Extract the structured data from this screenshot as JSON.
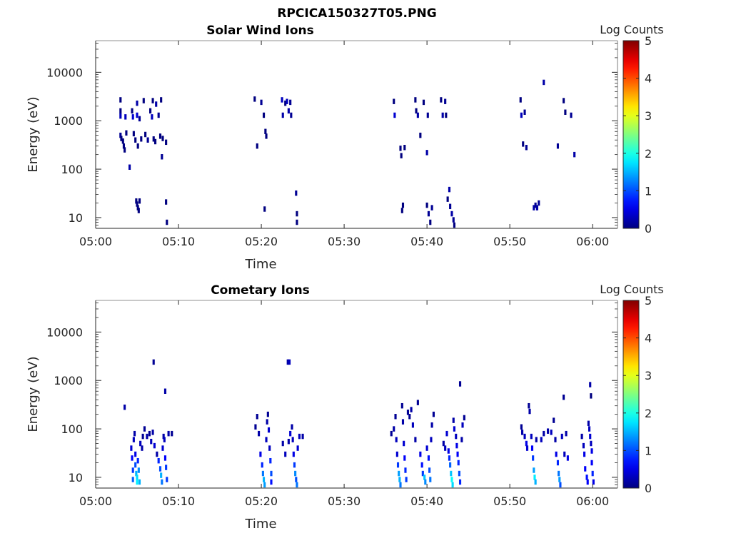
{
  "figure_title": "RPCICA150327T05.PNG",
  "chart_data": [
    {
      "type": "heatmap",
      "title": "Solar Wind Ions",
      "xlabel": "Time",
      "ylabel": "Energy (eV)",
      "y_scale": "log",
      "ylim": [
        6,
        45000
      ],
      "xlim": [
        "05:00",
        "06:03"
      ],
      "x_ticks": [
        "05:00",
        "05:10",
        "05:20",
        "05:30",
        "05:40",
        "05:50",
        "06:00"
      ],
      "y_ticks": [
        {
          "value": 10,
          "label": "10"
        },
        {
          "value": 100,
          "label": "100"
        },
        {
          "value": 1000,
          "label": "1000"
        },
        {
          "value": 10000,
          "label": "10000"
        }
      ],
      "colorbar": {
        "label": "Log Counts",
        "range": [
          0,
          5
        ],
        "ticks": [
          "0",
          "1",
          "2",
          "3",
          "4",
          "5"
        ],
        "colormap": "jet"
      },
      "grid": false,
      "cells": [
        [
          3.0,
          2700,
          0
        ],
        [
          3.0,
          1600,
          0
        ],
        [
          3.0,
          1250,
          0.3
        ],
        [
          3.0,
          500,
          0.1
        ],
        [
          3.1,
          430,
          0
        ],
        [
          3.3,
          380,
          0
        ],
        [
          3.4,
          300,
          0
        ],
        [
          3.5,
          250,
          0
        ],
        [
          3.6,
          1200,
          0.3
        ],
        [
          3.7,
          560,
          0
        ],
        [
          4.1,
          110,
          0.2
        ],
        [
          4.4,
          1600,
          0
        ],
        [
          4.5,
          1200,
          0.4
        ],
        [
          4.6,
          540,
          0
        ],
        [
          4.8,
          400,
          0
        ],
        [
          5.0,
          2300,
          0.2
        ],
        [
          5.0,
          1300,
          0.4
        ],
        [
          5.1,
          300,
          0
        ],
        [
          5.3,
          1100,
          0.1
        ],
        [
          5.5,
          420,
          0
        ],
        [
          5.8,
          2600,
          0
        ],
        [
          6.0,
          520,
          0
        ],
        [
          6.3,
          400,
          0.1
        ],
        [
          6.6,
          1600,
          0
        ],
        [
          6.8,
          1200,
          0.3
        ],
        [
          6.9,
          2600,
          0
        ],
        [
          7.0,
          420,
          0
        ],
        [
          7.2,
          370,
          0
        ],
        [
          7.3,
          2200,
          0.2
        ],
        [
          7.6,
          1300,
          0.1
        ],
        [
          7.8,
          480,
          0
        ],
        [
          7.9,
          2700,
          0
        ],
        [
          8.0,
          180,
          0.1
        ],
        [
          8.1,
          430,
          0
        ],
        [
          8.5,
          360,
          0
        ],
        [
          4.9,
          22,
          0
        ],
        [
          5.0,
          19,
          0
        ],
        [
          5.1,
          16,
          0
        ],
        [
          5.2,
          14,
          0
        ],
        [
          5.3,
          22,
          0
        ],
        [
          8.5,
          21,
          0
        ],
        [
          8.6,
          8,
          0
        ],
        [
          19.2,
          2800,
          0
        ],
        [
          19.5,
          300,
          0
        ],
        [
          20.0,
          2400,
          0.1
        ],
        [
          20.3,
          1300,
          0
        ],
        [
          20.5,
          600,
          0
        ],
        [
          20.6,
          480,
          0
        ],
        [
          20.4,
          15,
          0
        ],
        [
          22.5,
          2700,
          0.3
        ],
        [
          22.6,
          1300,
          0.2
        ],
        [
          22.9,
          2300,
          0
        ],
        [
          23.1,
          2500,
          0.3
        ],
        [
          23.3,
          1600,
          0.2
        ],
        [
          23.6,
          1300,
          0.1
        ],
        [
          23.5,
          2400,
          0.1
        ],
        [
          24.2,
          32,
          0.1
        ],
        [
          24.3,
          12,
          0
        ],
        [
          24.3,
          8,
          0
        ],
        [
          36.0,
          2500,
          0
        ],
        [
          36.1,
          1300,
          0.4
        ],
        [
          36.8,
          270,
          0
        ],
        [
          36.9,
          190,
          0
        ],
        [
          37.3,
          280,
          0
        ],
        [
          37.0,
          14,
          0
        ],
        [
          37.1,
          18,
          0
        ],
        [
          38.6,
          2700,
          0
        ],
        [
          38.7,
          1600,
          0
        ],
        [
          38.9,
          1300,
          0.2
        ],
        [
          39.2,
          500,
          0
        ],
        [
          39.6,
          2400,
          0
        ],
        [
          40.0,
          220,
          0.2
        ],
        [
          40.1,
          1300,
          0.1
        ],
        [
          40.0,
          18,
          0
        ],
        [
          40.2,
          12,
          0.1
        ],
        [
          40.4,
          8,
          0
        ],
        [
          40.6,
          16,
          0.1
        ],
        [
          41.7,
          2700,
          0
        ],
        [
          41.9,
          1300,
          0.2
        ],
        [
          42.2,
          2500,
          0.1
        ],
        [
          42.3,
          1300,
          0
        ],
        [
          42.5,
          24,
          0
        ],
        [
          42.7,
          38,
          0.2
        ],
        [
          42.8,
          17,
          0.1
        ],
        [
          43.0,
          12,
          0.2
        ],
        [
          43.2,
          9,
          0.1
        ],
        [
          43.3,
          7,
          0
        ],
        [
          51.3,
          2700,
          0
        ],
        [
          51.4,
          1300,
          0.3
        ],
        [
          51.6,
          330,
          0
        ],
        [
          51.8,
          1500,
          0.1
        ],
        [
          52.0,
          280,
          0.1
        ],
        [
          52.9,
          16,
          0.2
        ],
        [
          53.1,
          18,
          0.1
        ],
        [
          53.3,
          16,
          0.2
        ],
        [
          53.5,
          20,
          0.1
        ],
        [
          54.1,
          6200,
          0.2
        ],
        [
          55.8,
          300,
          0.1
        ],
        [
          56.5,
          2600,
          0
        ],
        [
          56.7,
          1500,
          0
        ],
        [
          57.4,
          1300,
          0.1
        ],
        [
          57.8,
          200,
          0.2
        ]
      ]
    },
    {
      "type": "heatmap",
      "title": "Cometary Ions",
      "xlabel": "Time",
      "ylabel": "Energy (eV)",
      "y_scale": "log",
      "ylim": [
        6,
        45000
      ],
      "xlim": [
        "05:00",
        "06:03"
      ],
      "x_ticks": [
        "05:00",
        "05:10",
        "05:20",
        "05:30",
        "05:40",
        "05:50",
        "06:00"
      ],
      "y_ticks": [
        {
          "value": 10,
          "label": "10"
        },
        {
          "value": 100,
          "label": "100"
        },
        {
          "value": 1000,
          "label": "1000"
        },
        {
          "value": 10000,
          "label": "10000"
        }
      ],
      "colorbar": {
        "label": "Log Counts",
        "range": [
          0,
          5
        ],
        "ticks": [
          "0",
          "1",
          "2",
          "3",
          "4",
          "5"
        ],
        "colormap": "jet"
      },
      "grid": false,
      "cells": [
        [
          3.5,
          280,
          0.2
        ],
        [
          7.0,
          2400,
          0.1
        ],
        [
          8.4,
          600,
          0.2
        ],
        [
          23.2,
          2400,
          0.2
        ],
        [
          23.4,
          2400,
          0.3
        ],
        [
          44.0,
          850,
          0.1
        ],
        [
          56.5,
          450,
          0.1
        ],
        [
          59.7,
          820,
          0.2
        ],
        [
          59.8,
          480,
          0
        ],
        [
          4.3,
          40,
          0.4
        ],
        [
          4.4,
          25,
          0.6
        ],
        [
          4.5,
          14,
          0.9
        ],
        [
          4.5,
          9,
          1.1
        ],
        [
          4.6,
          60,
          0.3
        ],
        [
          4.7,
          80,
          0.2
        ],
        [
          4.8,
          30,
          0.5
        ],
        [
          4.8,
          18,
          1.0
        ],
        [
          4.9,
          12,
          1.5
        ],
        [
          5.0,
          10,
          1.7
        ],
        [
          5.0,
          8,
          1.8
        ],
        [
          5.1,
          22,
          0.8
        ],
        [
          5.2,
          14,
          1.3
        ],
        [
          5.3,
          8,
          1.5
        ],
        [
          5.4,
          50,
          0.3
        ],
        [
          5.6,
          40,
          0.2
        ],
        [
          5.7,
          70,
          0.1
        ],
        [
          5.9,
          100,
          0.1
        ],
        [
          6.2,
          70,
          0.2
        ],
        [
          6.5,
          80,
          0.1
        ],
        [
          6.7,
          55,
          0.3
        ],
        [
          6.9,
          85,
          0.2
        ],
        [
          7.1,
          45,
          0.4
        ],
        [
          7.4,
          30,
          0.2
        ],
        [
          7.6,
          22,
          0.8
        ],
        [
          7.8,
          15,
          1.0
        ],
        [
          7.9,
          11,
          1.5
        ],
        [
          8.0,
          8,
          1.2
        ],
        [
          8.1,
          40,
          0.4
        ],
        [
          8.2,
          70,
          0.2
        ],
        [
          8.3,
          60,
          0.3
        ],
        [
          8.4,
          25,
          0.6
        ],
        [
          8.5,
          16,
          0.9
        ],
        [
          8.6,
          9,
          0.9
        ],
        [
          8.8,
          80,
          0.2
        ],
        [
          9.2,
          80,
          0.1
        ],
        [
          19.3,
          110,
          0.1
        ],
        [
          19.5,
          180,
          0.1
        ],
        [
          19.7,
          80,
          0.2
        ],
        [
          19.9,
          30,
          0.5
        ],
        [
          20.1,
          18,
          0.8
        ],
        [
          20.2,
          12,
          1.2
        ],
        [
          20.3,
          9,
          1.5
        ],
        [
          20.4,
          7,
          1.4
        ],
        [
          20.6,
          60,
          0.3
        ],
        [
          20.7,
          140,
          0.2
        ],
        [
          20.8,
          200,
          0.1
        ],
        [
          20.9,
          95,
          0.4
        ],
        [
          21.0,
          40,
          0.3
        ],
        [
          21.1,
          22,
          0.8
        ],
        [
          21.2,
          12,
          1.0
        ],
        [
          21.2,
          8,
          0.7
        ],
        [
          22.6,
          50,
          0.2
        ],
        [
          22.9,
          30,
          0.3
        ],
        [
          23.3,
          55,
          0.2
        ],
        [
          23.5,
          80,
          0.4
        ],
        [
          23.7,
          110,
          0.2
        ],
        [
          23.8,
          60,
          0.3
        ],
        [
          23.9,
          30,
          0.5
        ],
        [
          24.0,
          18,
          0.9
        ],
        [
          24.1,
          12,
          1.3
        ],
        [
          24.2,
          9,
          1.0
        ],
        [
          24.3,
          7,
          1.2
        ],
        [
          24.4,
          40,
          0.4
        ],
        [
          24.6,
          70,
          0.3
        ],
        [
          25.0,
          70,
          0.2
        ],
        [
          35.7,
          80,
          0.1
        ],
        [
          36.0,
          100,
          0.2
        ],
        [
          36.2,
          180,
          0.1
        ],
        [
          36.3,
          60,
          0.3
        ],
        [
          36.4,
          30,
          0.4
        ],
        [
          36.5,
          18,
          0.9
        ],
        [
          36.6,
          12,
          1.4
        ],
        [
          36.7,
          9,
          1.5
        ],
        [
          36.8,
          7,
          1.2
        ],
        [
          37.0,
          300,
          0.1
        ],
        [
          37.1,
          140,
          0.2
        ],
        [
          37.2,
          50,
          0.4
        ],
        [
          37.3,
          25,
          0.6
        ],
        [
          37.4,
          14,
          0.8
        ],
        [
          37.5,
          9,
          0.9
        ],
        [
          37.7,
          220,
          0.1
        ],
        [
          37.9,
          180,
          0.1
        ],
        [
          38.1,
          250,
          0.2
        ],
        [
          38.3,
          120,
          0.3
        ],
        [
          38.6,
          60,
          0.2
        ],
        [
          38.9,
          350,
          0.1
        ],
        [
          39.2,
          30,
          0.5
        ],
        [
          39.4,
          18,
          0.7
        ],
        [
          39.5,
          12,
          0.9
        ],
        [
          39.7,
          10,
          1.6
        ],
        [
          39.8,
          8,
          1.3
        ],
        [
          40.0,
          40,
          0.4
        ],
        [
          40.2,
          25,
          0.7
        ],
        [
          40.3,
          14,
          1.0
        ],
        [
          40.4,
          9,
          1.2
        ],
        [
          40.5,
          60,
          0.3
        ],
        [
          40.6,
          120,
          0.2
        ],
        [
          40.8,
          200,
          0.1
        ],
        [
          42.0,
          50,
          0.2
        ],
        [
          42.2,
          40,
          0.3
        ],
        [
          42.4,
          80,
          0.4
        ],
        [
          42.6,
          35,
          0.5
        ],
        [
          42.7,
          25,
          0.8
        ],
        [
          42.8,
          18,
          1.1
        ],
        [
          42.9,
          12,
          1.6
        ],
        [
          43.0,
          9,
          1.9
        ],
        [
          43.1,
          7,
          1.7
        ],
        [
          43.2,
          150,
          0.2
        ],
        [
          43.3,
          100,
          0.4
        ],
        [
          43.5,
          70,
          0.3
        ],
        [
          43.6,
          45,
          0.5
        ],
        [
          43.7,
          30,
          0.6
        ],
        [
          43.8,
          20,
          0.8
        ],
        [
          43.9,
          12,
          1.0
        ],
        [
          44.0,
          8,
          0.8
        ],
        [
          44.2,
          60,
          0.2
        ],
        [
          44.3,
          120,
          0.3
        ],
        [
          44.5,
          170,
          0.1
        ],
        [
          51.4,
          110,
          0.1
        ],
        [
          51.5,
          85,
          0.2
        ],
        [
          51.8,
          70,
          0.3
        ],
        [
          52.0,
          50,
          0.5
        ],
        [
          52.1,
          40,
          0.4
        ],
        [
          52.3,
          300,
          0.1
        ],
        [
          52.4,
          230,
          0.2
        ],
        [
          52.6,
          70,
          0.3
        ],
        [
          52.7,
          40,
          0.6
        ],
        [
          52.8,
          25,
          0.9
        ],
        [
          52.9,
          14,
          1.4
        ],
        [
          53.0,
          10,
          1.8
        ],
        [
          53.1,
          8,
          1.5
        ],
        [
          53.2,
          60,
          0.2
        ],
        [
          53.8,
          60,
          0.3
        ],
        [
          54.1,
          80,
          0.2
        ],
        [
          54.6,
          90,
          0.2
        ],
        [
          55.0,
          85,
          0.3
        ],
        [
          55.3,
          150,
          0.1
        ],
        [
          55.5,
          60,
          0.2
        ],
        [
          55.6,
          30,
          0.5
        ],
        [
          55.8,
          20,
          0.8
        ],
        [
          55.9,
          12,
          1.2
        ],
        [
          56.0,
          9,
          1.4
        ],
        [
          56.1,
          7,
          1.0
        ],
        [
          56.3,
          70,
          0.3
        ],
        [
          56.6,
          30,
          0.3
        ],
        [
          56.8,
          80,
          0.2
        ],
        [
          57.0,
          25,
          0.5
        ],
        [
          58.7,
          70,
          0.2
        ],
        [
          58.9,
          45,
          0.3
        ],
        [
          59.0,
          30,
          0.5
        ],
        [
          59.1,
          15,
          0.6
        ],
        [
          59.3,
          10,
          0.7
        ],
        [
          59.4,
          8,
          0.6
        ],
        [
          59.5,
          130,
          0.2
        ],
        [
          59.6,
          100,
          0.3
        ],
        [
          59.7,
          70,
          0.4
        ],
        [
          59.8,
          50,
          0.3
        ],
        [
          59.9,
          35,
          0.5
        ],
        [
          59.9,
          20,
          0.6
        ],
        [
          60.0,
          12,
          0.8
        ],
        [
          60.1,
          8,
          0.5
        ]
      ]
    }
  ]
}
